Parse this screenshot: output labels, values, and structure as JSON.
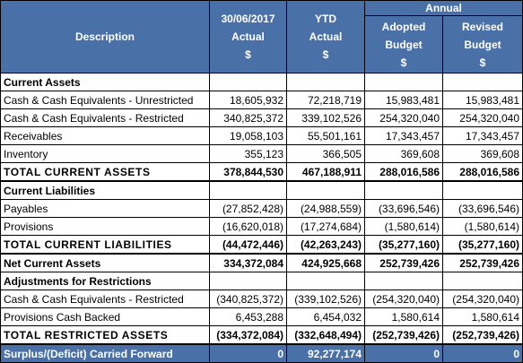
{
  "header": {
    "description": "Description",
    "group": "Annual",
    "columns": [
      {
        "line1": "30/06/2017",
        "line2": "Actual",
        "line3": "$"
      },
      {
        "line1": "YTD",
        "line2": "Actual",
        "line3": "$"
      },
      {
        "line1": "Adopted",
        "line2": "Budget",
        "line3": "$"
      },
      {
        "line1": "Revised",
        "line2": "Budget",
        "line3": "$"
      }
    ]
  },
  "rows": [
    {
      "label": "Current Assets",
      "values": [
        "",
        "",
        "",
        ""
      ]
    },
    {
      "label": "Cash & Cash Equivalents - Unrestricted",
      "values": [
        "18,605,932",
        "72,218,719",
        "15,983,481",
        "15,983,481"
      ]
    },
    {
      "label": "Cash & Cash Equivalents - Restricted",
      "values": [
        "340,825,372",
        "339,102,526",
        "254,320,040",
        "254,320,040"
      ]
    },
    {
      "label": "Receivables",
      "values": [
        "19,058,103",
        "55,501,161",
        "17,343,457",
        "17,343,457"
      ]
    },
    {
      "label": "Inventory",
      "values": [
        "355,123",
        "366,505",
        "369,608",
        "369,608"
      ]
    },
    {
      "label": "TOTAL CURRENT ASSETS",
      "values": [
        "378,844,530",
        "467,188,911",
        "288,016,586",
        "288,016,586"
      ]
    },
    {
      "label": "Current Liabilities",
      "values": [
        "",
        "",
        "",
        ""
      ]
    },
    {
      "label": "Payables",
      "values": [
        "(27,852,428)",
        "(24,988,559)",
        "(33,696,546)",
        "(33,696,546)"
      ]
    },
    {
      "label": "Provisions",
      "values": [
        "(16,620,018)",
        "(17,274,684)",
        "(1,580,614)",
        "(1,580,614)"
      ]
    },
    {
      "label": "TOTAL CURRENT LIABILITIES",
      "values": [
        "(44,472,446)",
        "(42,263,243)",
        "(35,277,160)",
        "(35,277,160)"
      ]
    },
    {
      "label": "Net Current Assets",
      "values": [
        "334,372,084",
        "424,925,668",
        "252,739,426",
        "252,739,426"
      ]
    },
    {
      "label": "Adjustments for Restrictions",
      "values": [
        "",
        "",
        "",
        ""
      ]
    },
    {
      "label": "Cash & Cash Equivalents - Restricted",
      "values": [
        "(340,825,372)",
        "(339,102,526)",
        "(254,320,040)",
        "(254,320,040)"
      ]
    },
    {
      "label": "Provisions Cash Backed",
      "values": [
        "6,453,288",
        "6,454,032",
        "1,580,614",
        "1,580,614"
      ]
    },
    {
      "label": "TOTAL RESTRICTED ASSETS",
      "values": [
        "(334,372,084)",
        "(332,648,494)",
        "(252,739,426)",
        "(252,739,426)"
      ]
    },
    {
      "label": "Surplus/(Deficit) Carried Forward",
      "values": [
        "0",
        "92,277,174",
        "0",
        "0"
      ]
    }
  ]
}
